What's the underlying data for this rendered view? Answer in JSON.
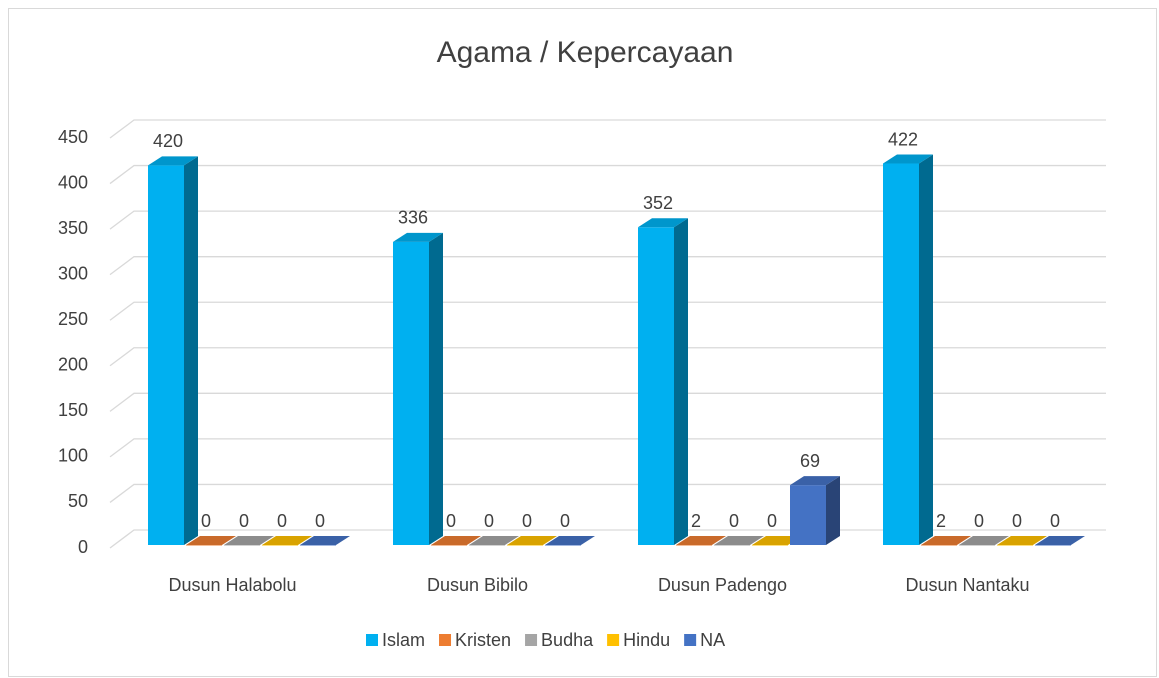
{
  "chart_data": {
    "type": "bar3d",
    "title": "Agama / Kepercayaan",
    "categories": [
      "Dusun Halabolu",
      "Dusun Bibilo",
      "Dusun Padengo",
      "Dusun Nantaku"
    ],
    "series": [
      {
        "name": "Islam",
        "color": "#00b0f0",
        "values": [
          420,
          336,
          352,
          422
        ]
      },
      {
        "name": "Kristen",
        "color": "#ed7d31",
        "values": [
          0,
          0,
          2,
          2
        ]
      },
      {
        "name": "Budha",
        "color": "#a5a5a5",
        "values": [
          0,
          0,
          0,
          0
        ]
      },
      {
        "name": "Hindu",
        "color": "#ffc000",
        "values": [
          0,
          0,
          0,
          0
        ]
      },
      {
        "name": "NA",
        "color": "#4472c4",
        "values": [
          0,
          0,
          69,
          0
        ]
      }
    ],
    "ylim": [
      0,
      450
    ],
    "yticks": [
      0,
      50,
      100,
      150,
      200,
      250,
      300,
      350,
      400,
      450
    ],
    "grid": true,
    "legend": "bottom"
  }
}
